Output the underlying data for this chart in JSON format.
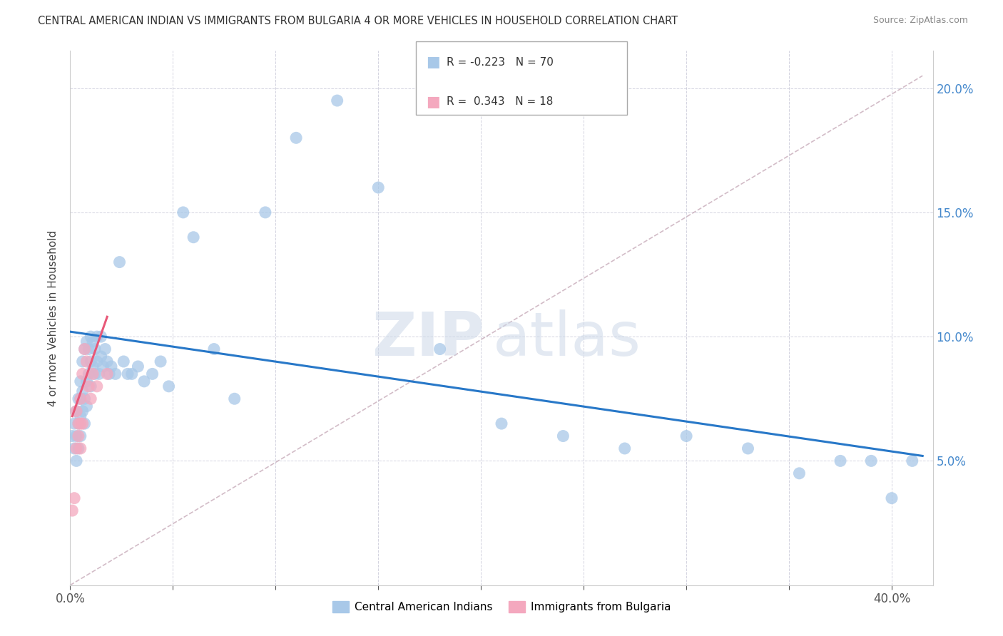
{
  "title": "CENTRAL AMERICAN INDIAN VS IMMIGRANTS FROM BULGARIA 4 OR MORE VEHICLES IN HOUSEHOLD CORRELATION CHART",
  "source": "Source: ZipAtlas.com",
  "ylabel": "4 or more Vehicles in Household",
  "xlim": [
    0.0,
    0.42
  ],
  "ylim": [
    0.0,
    0.215
  ],
  "blue_color": "#a8c8e8",
  "pink_color": "#f4a8be",
  "blue_line_color": "#2878c8",
  "pink_line_color": "#e85878",
  "gray_dash_color": "#c8a8b8",
  "legend_r_blue": "-0.223",
  "legend_n_blue": "70",
  "legend_r_pink": "0.343",
  "legend_n_pink": "18",
  "watermark_zip": "ZIP",
  "watermark_atlas": "atlas",
  "blue_scatter_x": [
    0.001,
    0.002,
    0.002,
    0.003,
    0.003,
    0.003,
    0.004,
    0.004,
    0.004,
    0.005,
    0.005,
    0.005,
    0.005,
    0.006,
    0.006,
    0.006,
    0.007,
    0.007,
    0.007,
    0.008,
    0.008,
    0.008,
    0.009,
    0.009,
    0.01,
    0.01,
    0.01,
    0.011,
    0.011,
    0.012,
    0.012,
    0.013,
    0.013,
    0.014,
    0.015,
    0.015,
    0.016,
    0.017,
    0.018,
    0.019,
    0.02,
    0.022,
    0.024,
    0.026,
    0.028,
    0.03,
    0.033,
    0.036,
    0.04,
    0.044,
    0.048,
    0.055,
    0.06,
    0.07,
    0.08,
    0.095,
    0.11,
    0.13,
    0.15,
    0.18,
    0.21,
    0.24,
    0.27,
    0.3,
    0.33,
    0.355,
    0.375,
    0.39,
    0.4,
    0.41
  ],
  "blue_scatter_y": [
    0.06,
    0.055,
    0.065,
    0.05,
    0.06,
    0.07,
    0.055,
    0.065,
    0.075,
    0.06,
    0.068,
    0.075,
    0.082,
    0.07,
    0.078,
    0.09,
    0.065,
    0.075,
    0.095,
    0.072,
    0.082,
    0.098,
    0.085,
    0.095,
    0.08,
    0.09,
    0.1,
    0.088,
    0.098,
    0.085,
    0.095,
    0.09,
    0.1,
    0.085,
    0.092,
    0.1,
    0.088,
    0.095,
    0.09,
    0.085,
    0.088,
    0.085,
    0.13,
    0.09,
    0.085,
    0.085,
    0.088,
    0.082,
    0.085,
    0.09,
    0.08,
    0.15,
    0.14,
    0.095,
    0.075,
    0.15,
    0.18,
    0.195,
    0.16,
    0.095,
    0.065,
    0.06,
    0.055,
    0.06,
    0.055,
    0.045,
    0.05,
    0.05,
    0.035,
    0.05
  ],
  "pink_scatter_x": [
    0.001,
    0.002,
    0.003,
    0.003,
    0.004,
    0.004,
    0.005,
    0.005,
    0.005,
    0.006,
    0.006,
    0.007,
    0.008,
    0.009,
    0.01,
    0.011,
    0.013,
    0.018
  ],
  "pink_scatter_y": [
    0.03,
    0.035,
    0.055,
    0.07,
    0.06,
    0.065,
    0.055,
    0.065,
    0.075,
    0.065,
    0.085,
    0.095,
    0.09,
    0.08,
    0.075,
    0.085,
    0.08,
    0.085
  ],
  "blue_line_x0": 0.0,
  "blue_line_x1": 0.415,
  "blue_line_y0": 0.102,
  "blue_line_y1": 0.052,
  "pink_line_x0": 0.001,
  "pink_line_x1": 0.018,
  "pink_line_y0": 0.068,
  "pink_line_y1": 0.108,
  "gray_line_x0": 0.0,
  "gray_line_x1": 0.415,
  "gray_line_y0": 0.0,
  "gray_line_y1": 0.205
}
